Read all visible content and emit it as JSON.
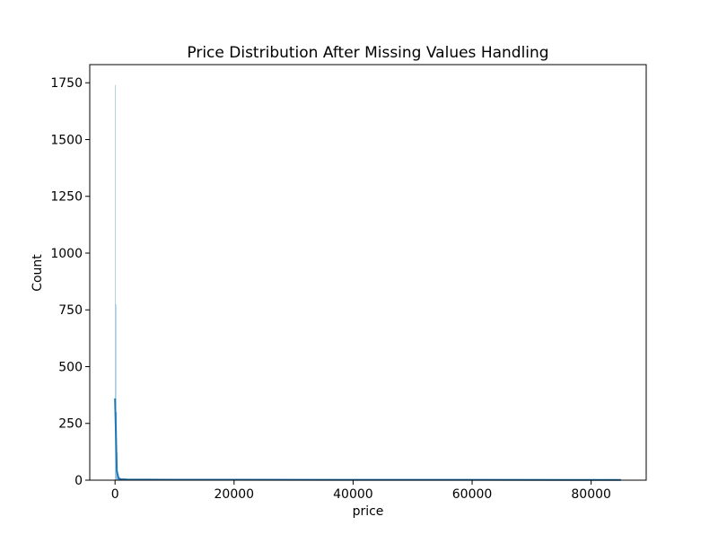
{
  "chart_data": {
    "type": "bar",
    "title": "Price Distribution After Missing Values Handling",
    "xlabel": "price",
    "ylabel": "Count",
    "xlim": [
      -4250,
      89250
    ],
    "ylim": [
      0,
      1830
    ],
    "x_ticks": [
      0,
      20000,
      40000,
      60000,
      80000
    ],
    "x_tick_labels": [
      "0",
      "20000",
      "40000",
      "60000",
      "80000"
    ],
    "y_ticks": [
      0,
      250,
      500,
      750,
      1000,
      1250,
      1500,
      1750
    ],
    "y_tick_labels": [
      "0",
      "250",
      "500",
      "750",
      "1000",
      "1250",
      "1500",
      "1750"
    ],
    "bin_width": 100,
    "bins": [
      {
        "x": 0,
        "count": 1740
      },
      {
        "x": 100,
        "count": 775
      },
      {
        "x": 200,
        "count": 300
      },
      {
        "x": 300,
        "count": 120
      },
      {
        "x": 400,
        "count": 40
      },
      {
        "x": 500,
        "count": 20
      },
      {
        "x": 600,
        "count": 10
      },
      {
        "x": 700,
        "count": 6
      },
      {
        "x": 800,
        "count": 4
      },
      {
        "x": 900,
        "count": 3
      }
    ],
    "kde": {
      "x": [
        0,
        300,
        600,
        1000,
        2000,
        5000,
        10000,
        20000,
        40000,
        60000,
        80000,
        85000
      ],
      "y": [
        360,
        40,
        8,
        4,
        3,
        2.5,
        2,
        2,
        1.5,
        1.5,
        1,
        1
      ]
    },
    "colors": {
      "bar": "#1f77b4",
      "kde": "#1f77b4"
    },
    "grid": false
  }
}
